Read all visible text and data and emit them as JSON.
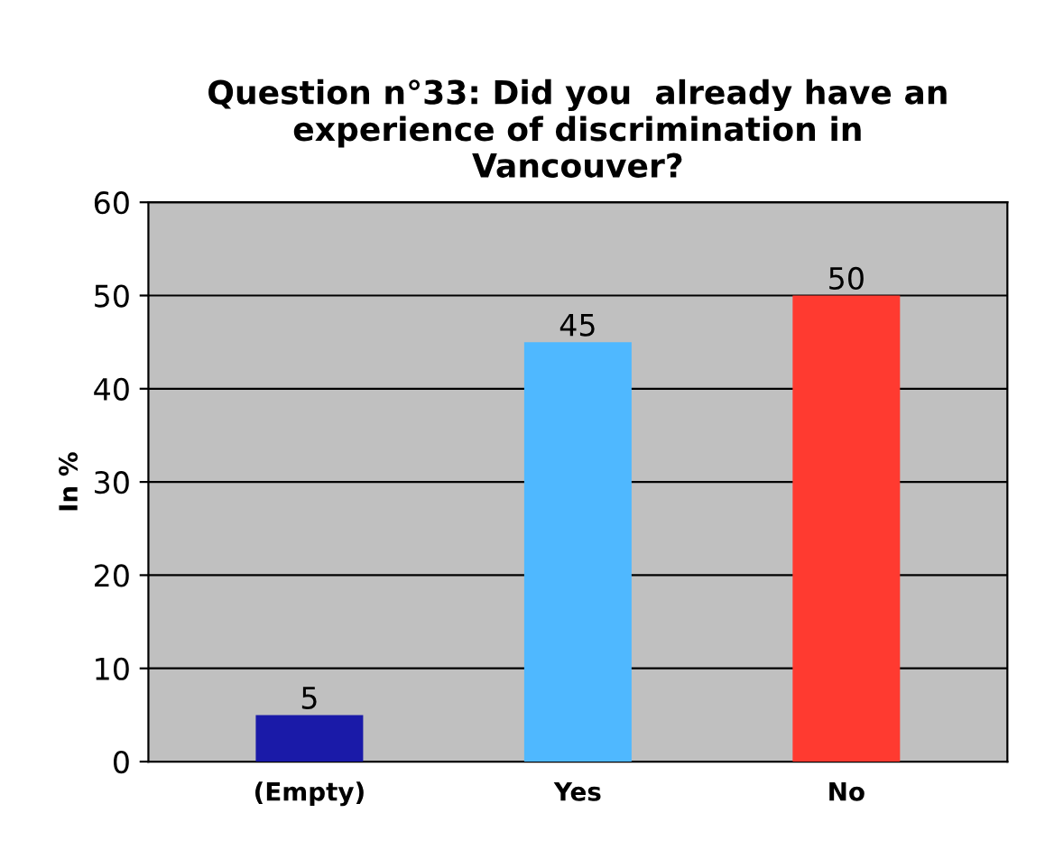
{
  "chart_data": {
    "type": "bar",
    "title": "Question n°33: Did you  already have an\nexperience of discrimination in\nVancouver?",
    "ylabel": "In %",
    "categories": [
      "(Empty)",
      "Yes",
      "No"
    ],
    "values": [
      5,
      45,
      50
    ],
    "colors": [
      "#1a1aa8",
      "#4fb8ff",
      "#ff3a30"
    ],
    "ylim": [
      0,
      60
    ],
    "yticks": [
      0,
      10,
      20,
      30,
      40,
      50,
      60
    ],
    "grid": "y",
    "data_labels": true,
    "legend": false
  }
}
